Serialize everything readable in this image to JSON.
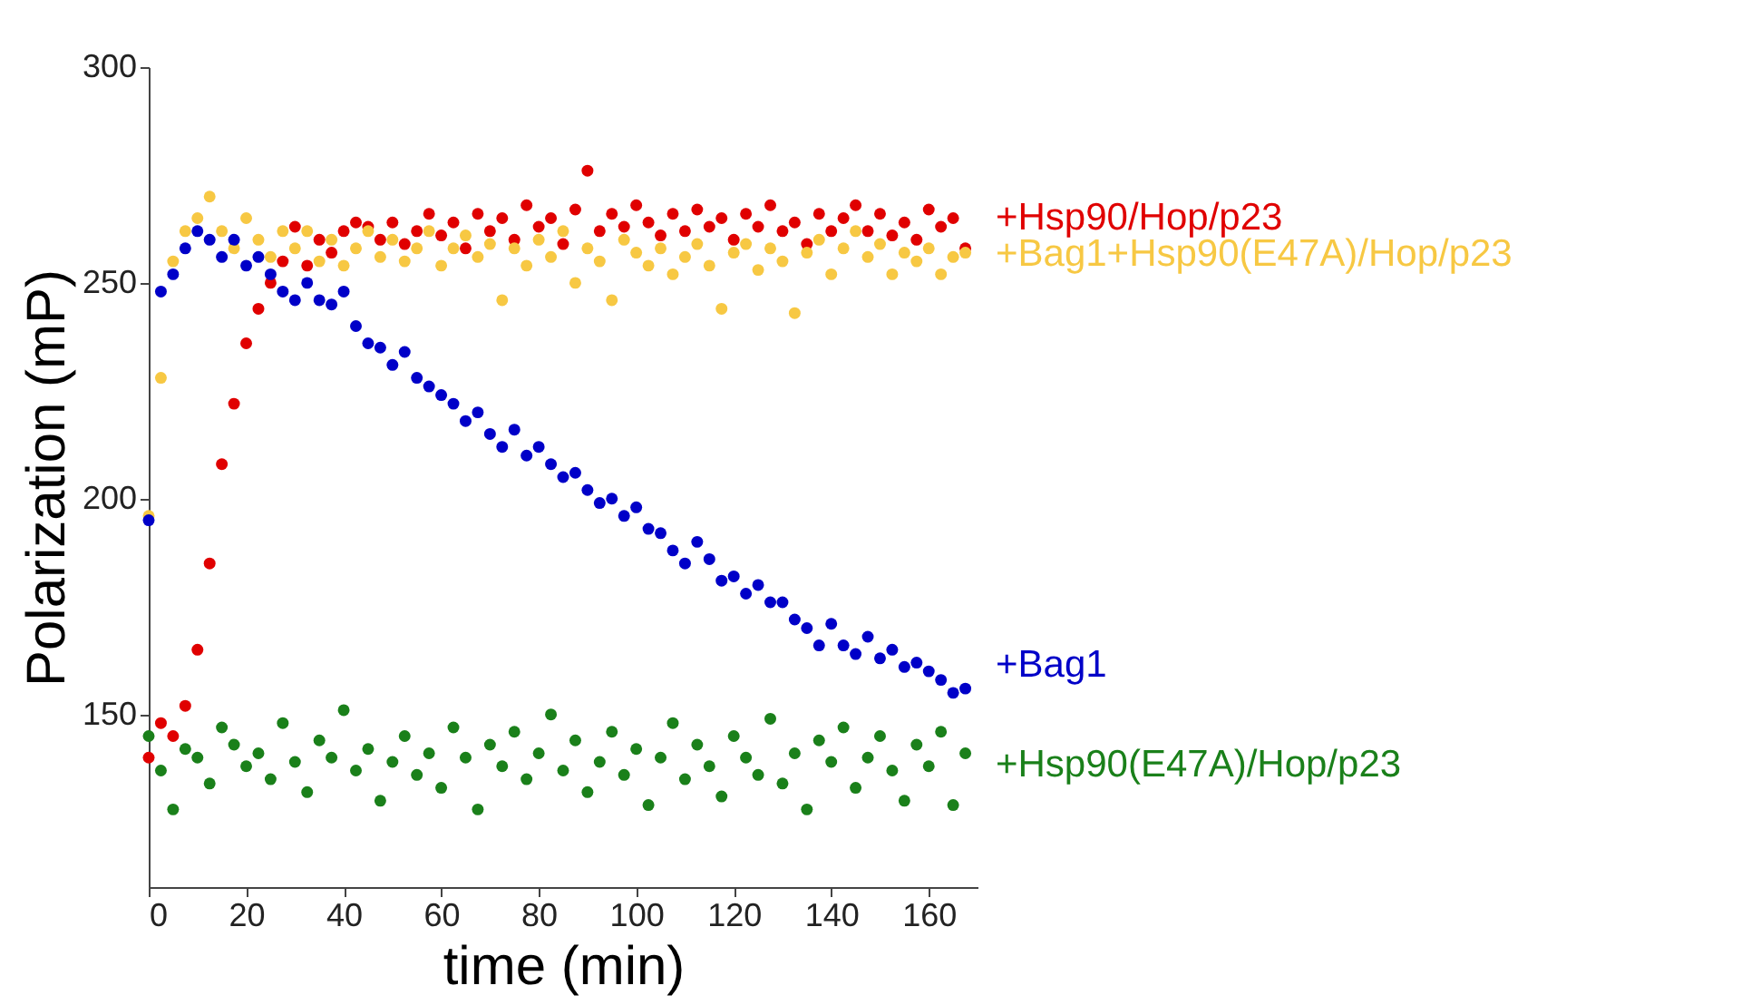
{
  "chart_data": {
    "type": "scatter",
    "xlabel": "time (min)",
    "ylabel": "Polarization (mP)",
    "x": [
      0,
      2.5,
      5,
      7.5,
      10,
      12.5,
      15,
      17.5,
      20,
      22.5,
      25,
      27.5,
      30,
      32.5,
      35,
      37.5,
      40,
      42.5,
      45,
      47.5,
      50,
      52.5,
      55,
      57.5,
      60,
      62.5,
      65,
      67.5,
      70,
      72.5,
      75,
      77.5,
      80,
      82.5,
      85,
      87.5,
      90,
      92.5,
      95,
      97.5,
      100,
      102.5,
      105,
      107.5,
      110,
      112.5,
      115,
      117.5,
      120,
      122.5,
      125,
      127.5,
      130,
      132.5,
      135,
      137.5,
      140,
      142.5,
      145,
      147.5,
      150,
      152.5,
      155,
      157.5,
      160,
      162.5,
      165,
      167.5
    ],
    "series": [
      {
        "name": "+Hsp90/Hop/p23",
        "color": "#e00000",
        "values": [
          140,
          148,
          145,
          152,
          165,
          185,
          208,
          222,
          236,
          244,
          250,
          255,
          263,
          254,
          260,
          257,
          262,
          264,
          263,
          260,
          264,
          259,
          262,
          266,
          261,
          264,
          258,
          266,
          262,
          265,
          260,
          268,
          263,
          265,
          259,
          267,
          276,
          262,
          266,
          263,
          268,
          264,
          261,
          266,
          262,
          267,
          263,
          265,
          260,
          266,
          263,
          268,
          262,
          264,
          259,
          266,
          262,
          265,
          268,
          262,
          266,
          261,
          264,
          260,
          267,
          263,
          265,
          258
        ]
      },
      {
        "name": "+Bag1+Hsp90(E47A)/Hop/p23",
        "color": "#f7c843",
        "values": [
          196,
          228,
          255,
          262,
          265,
          270,
          262,
          258,
          265,
          260,
          256,
          262,
          258,
          262,
          255,
          260,
          254,
          258,
          262,
          256,
          260,
          255,
          258,
          262,
          254,
          258,
          261,
          256,
          259,
          246,
          258,
          254,
          260,
          256,
          262,
          250,
          258,
          255,
          246,
          260,
          257,
          254,
          258,
          252,
          256,
          259,
          254,
          244,
          257,
          259,
          253,
          258,
          255,
          243,
          257,
          260,
          252,
          258,
          262,
          256,
          259,
          252,
          257,
          255,
          258,
          252,
          256,
          257
        ]
      },
      {
        "name": "+Bag1",
        "color": "#0000c8",
        "values": [
          195,
          248,
          252,
          258,
          262,
          260,
          256,
          260,
          254,
          256,
          252,
          248,
          246,
          250,
          246,
          245,
          248,
          240,
          236,
          235,
          231,
          234,
          228,
          226,
          224,
          222,
          218,
          220,
          215,
          212,
          216,
          210,
          212,
          208,
          205,
          206,
          202,
          199,
          200,
          196,
          198,
          193,
          192,
          188,
          185,
          190,
          186,
          181,
          182,
          178,
          180,
          176,
          176,
          172,
          170,
          166,
          171,
          166,
          164,
          168,
          163,
          165,
          161,
          162,
          160,
          158,
          155,
          156
        ]
      },
      {
        "name": "+Hsp90(E47A)/Hop/p23",
        "color": "#1a801a",
        "values": [
          145,
          137,
          128,
          142,
          140,
          134,
          147,
          143,
          138,
          141,
          135,
          148,
          139,
          132,
          144,
          140,
          151,
          137,
          142,
          130,
          139,
          145,
          136,
          141,
          133,
          147,
          140,
          128,
          143,
          138,
          146,
          135,
          141,
          150,
          137,
          144,
          132,
          139,
          146,
          136,
          142,
          129,
          140,
          148,
          135,
          143,
          138,
          131,
          145,
          140,
          136,
          149,
          134,
          141,
          128,
          144,
          139,
          147,
          133,
          140,
          145,
          137,
          130,
          143,
          138,
          146,
          129,
          141
        ]
      }
    ],
    "xlim": [
      0,
      170
    ],
    "xticks": [
      0,
      20,
      40,
      60,
      80,
      100,
      120,
      140,
      160
    ],
    "ylim": [
      110,
      300
    ],
    "yticks": [
      150,
      200,
      250,
      300
    ],
    "grid": false,
    "marker": "circle",
    "legend": "right"
  }
}
